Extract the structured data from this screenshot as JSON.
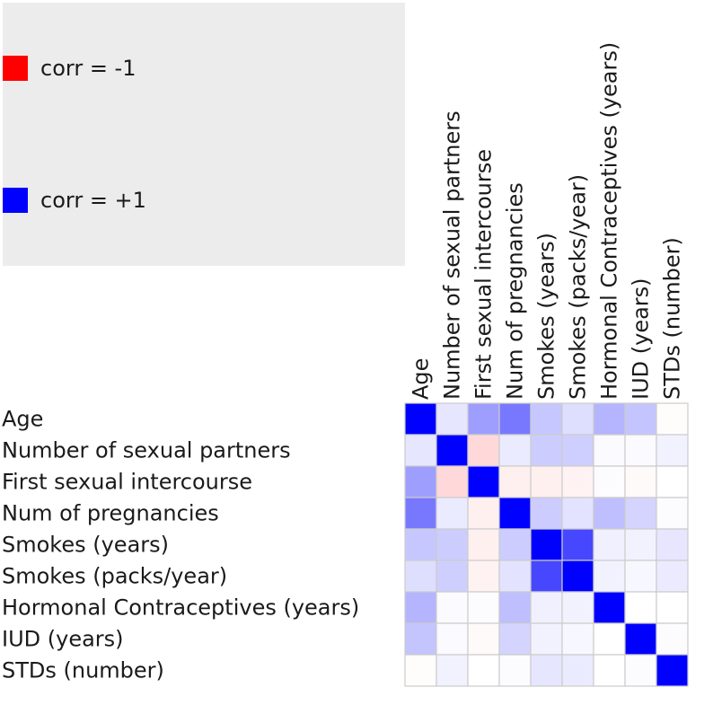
{
  "chart_data": {
    "type": "heatmap",
    "variables": [
      "Age",
      "Number of sexual partners",
      "First sexual intercourse",
      "Num of pregnancies",
      "Smokes (years)",
      "Smokes (packs/year)",
      "Hormonal Contraceptives (years)",
      "IUD (years)",
      "STDs (number)"
    ],
    "matrix": [
      [
        1.0,
        0.1,
        0.38,
        0.53,
        0.22,
        0.13,
        0.29,
        0.23,
        -0.01
      ],
      [
        0.1,
        1.0,
        -0.15,
        0.08,
        0.2,
        0.19,
        0.02,
        0.02,
        0.05
      ],
      [
        0.38,
        -0.15,
        1.0,
        -0.06,
        -0.06,
        -0.05,
        0.01,
        -0.02,
        0.0
      ],
      [
        0.53,
        0.08,
        -0.06,
        1.0,
        0.2,
        0.11,
        0.25,
        0.17,
        0.01
      ],
      [
        0.22,
        0.2,
        -0.06,
        0.2,
        1.0,
        0.72,
        0.06,
        0.05,
        0.1
      ],
      [
        0.13,
        0.19,
        -0.05,
        0.11,
        0.72,
        1.0,
        0.05,
        0.03,
        0.08
      ],
      [
        0.29,
        0.02,
        0.01,
        0.25,
        0.06,
        0.05,
        1.0,
        0.0,
        0.0
      ],
      [
        0.23,
        0.02,
        -0.02,
        0.17,
        0.05,
        0.03,
        0.0,
        1.0,
        0.01
      ],
      [
        -0.01,
        0.05,
        0.0,
        0.01,
        0.1,
        0.08,
        0.0,
        0.01,
        1.0
      ]
    ],
    "color_range": [
      -1,
      1
    ],
    "legend": [
      {
        "label": "corr = -1",
        "color": "#ff0000"
      },
      {
        "label": "corr = +1",
        "color": "#0000ff"
      }
    ],
    "legend_placement": "top-left"
  }
}
